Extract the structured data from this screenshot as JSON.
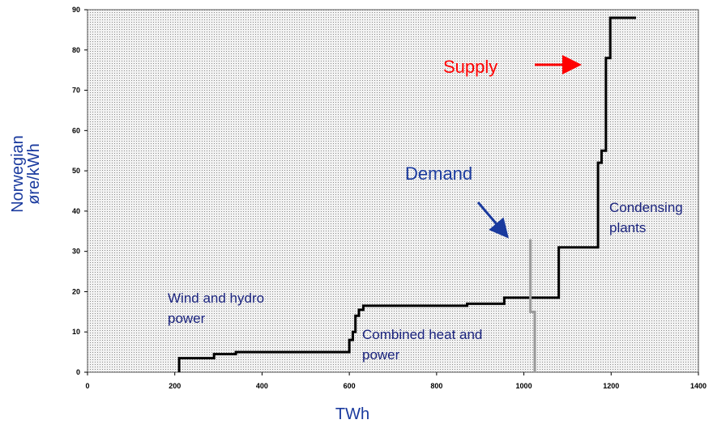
{
  "chart_data": {
    "type": "line",
    "step": true,
    "x_label": "TWh",
    "y_label": [
      "Norwegian",
      "øre/kWh"
    ],
    "xlim": [
      0,
      1400
    ],
    "xticks": [
      0,
      200,
      400,
      600,
      800,
      1000,
      1200,
      1400
    ],
    "ylim": [
      0,
      90
    ],
    "yticks": [
      0,
      10,
      20,
      30,
      40,
      50,
      60,
      70,
      80,
      90
    ],
    "series": [
      {
        "name": "Supply",
        "color": "#000000",
        "x": [
          210,
          210,
          290,
          290,
          340,
          340,
          600,
          600,
          608,
          608,
          614,
          614,
          622,
          622,
          632,
          632,
          870,
          870,
          955,
          955,
          1080,
          1080,
          1170,
          1170,
          1178,
          1178,
          1188,
          1188,
          1198,
          1198,
          1257
        ],
        "values": [
          0,
          3.5,
          3.5,
          4.5,
          4.5,
          5,
          5,
          8,
          8,
          10,
          10,
          14,
          14,
          15.5,
          15.5,
          16.5,
          16.5,
          17,
          17,
          18.5,
          18.5,
          31,
          31,
          52,
          52,
          55,
          55,
          78,
          78,
          88,
          88
        ]
      },
      {
        "name": "Demand",
        "color": "#999999",
        "x": [
          1015,
          1015,
          1025,
          1025
        ],
        "values": [
          33,
          15,
          15,
          0
        ]
      }
    ],
    "annotations": [
      {
        "lines": [
          "Wind and hydro",
          "power"
        ]
      },
      {
        "lines": [
          "Combined heat and",
          "power"
        ]
      },
      {
        "lines": [
          "Condensing",
          "plants"
        ]
      }
    ]
  }
}
